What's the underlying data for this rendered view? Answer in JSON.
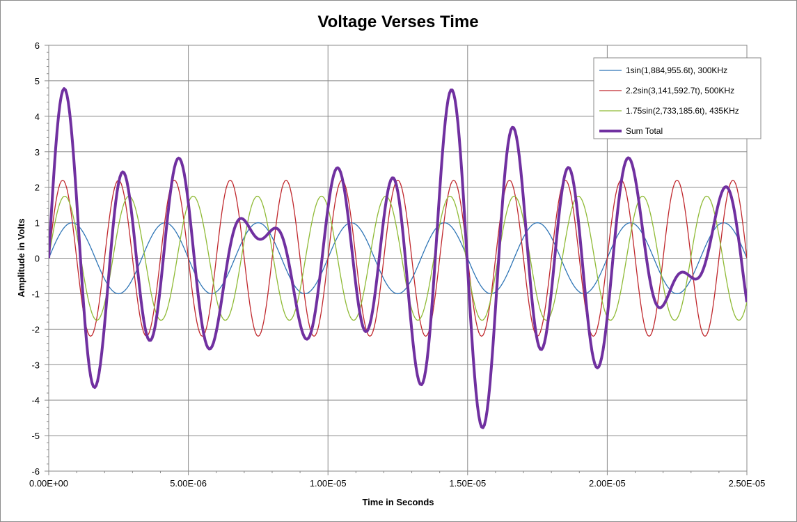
{
  "chart_data": {
    "type": "line",
    "title": "Voltage Verses Time",
    "xlabel": "Time in Seconds",
    "ylabel": "Amplitude in Volts",
    "xlim": [
      0,
      2.5e-05
    ],
    "ylim": [
      -6,
      6
    ],
    "x_ticks": [
      0,
      5e-06,
      1e-05,
      1.5e-05,
      2e-05,
      2.5e-05
    ],
    "x_tick_labels": [
      "0.00E+00",
      "5.00E-06",
      "1.00E-05",
      "1.50E-05",
      "2.00E-05",
      "2.50E-05"
    ],
    "y_ticks": [
      -6,
      -5,
      -4,
      -3,
      -2,
      -1,
      0,
      1,
      2,
      3,
      4,
      5,
      6
    ],
    "y_tick_labels": [
      "-6",
      "-5",
      "-4",
      "-3",
      "-2",
      "-1",
      "0",
      "1",
      "2",
      "3",
      "4",
      "5",
      "6"
    ],
    "grid": true,
    "legend_position": "top-right",
    "x_sampling": {
      "start": 0,
      "end": 2.5e-05,
      "step": 5e-08
    },
    "series": [
      {
        "name": "1sin(1,884,955.6t), 300KHz",
        "color": "#2e75b6",
        "amplitude": 1,
        "omega": 1884955.6,
        "line": "thin"
      },
      {
        "name": "2.2sin(3,141,592.7t), 500KHz",
        "color": "#c0282d",
        "amplitude": 2.2,
        "omega": 3141592.7,
        "line": "thin"
      },
      {
        "name": "1.75sin(2,733,185.6t), 435KHz",
        "color": "#8fba35",
        "amplitude": 1.75,
        "omega": 2733185.6,
        "line": "thin"
      },
      {
        "name": "Sum Total",
        "color": "#7030a0",
        "sum_of": [
          0,
          1,
          2
        ],
        "line": "thick"
      }
    ]
  }
}
